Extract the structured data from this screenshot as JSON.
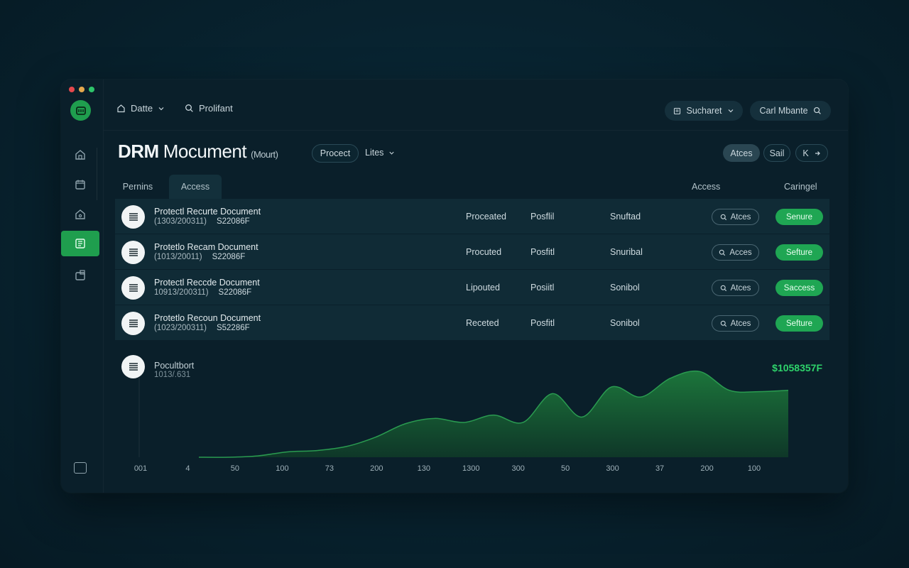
{
  "topbar": {
    "date_label": "Datte",
    "search_label": "Prolifant",
    "select_label": "Sucharet",
    "search_pill_label": "Carl Mbante"
  },
  "header": {
    "title_main": "DRM",
    "title_rest": "Mocument",
    "title_sub": "(Mourt)",
    "filter_pill": "Procect",
    "filter_dropdown": "Lites",
    "actions": [
      "Atces",
      "Sail",
      "K"
    ]
  },
  "tabs": [
    "Pernins",
    "Access"
  ],
  "column_headers": {
    "access": "Access",
    "status": "Caringel"
  },
  "rows": [
    {
      "name": "Protectl Recurte Document",
      "date": "(1303/200311)",
      "code": "S22086F",
      "col1": "Proceated",
      "col2": "Posflil",
      "col3": "Snuftad",
      "access": "Atces",
      "status": "Senure"
    },
    {
      "name": "Protetlo Recam Document",
      "date": "(1013/20011)",
      "code": "S22086F",
      "col1": "Procuted",
      "col2": "Posfitl",
      "col3": "Snuribal",
      "access": "Acces",
      "status": "Sefture"
    },
    {
      "name": "Protectl Reccde Document",
      "date": "10913/200311)",
      "code": "S22086F",
      "col1": "Lipouted",
      "col2": "Posiitl",
      "col3": "Sonibol",
      "access": "Atces",
      "status": "Saccess"
    },
    {
      "name": "Protetlo Recoun Document",
      "date": "(1023/200311)",
      "code": "S52286F",
      "col1": "Receted",
      "col2": "Posfitl",
      "col3": "Sonibol",
      "access": "Atces",
      "status": "Sefture"
    }
  ],
  "chart_panel": {
    "name": "Pocultbort",
    "date": "1013/.631",
    "value": "$1058357F"
  },
  "colors": {
    "accent": "#1fa653",
    "panel": "#102b36",
    "background": "#0a1f2a"
  },
  "chart_data": {
    "type": "area",
    "title": "",
    "xlabel": "",
    "ylabel": "",
    "x_tick_labels": [
      "001",
      "4",
      "50",
      "100",
      "73",
      "200",
      "130",
      "1300",
      "300",
      "50",
      "300",
      "37",
      "200",
      "100"
    ],
    "x": [
      0,
      0.1,
      0.2,
      0.3,
      0.4,
      0.5,
      0.6,
      0.7,
      0.8,
      0.9,
      1.0,
      1.1,
      1.2,
      1.3,
      1.4,
      1.5,
      1.6,
      1.7,
      1.8,
      1.9,
      2.0
    ],
    "values": [
      0,
      0,
      2,
      8,
      10,
      16,
      30,
      50,
      58,
      52,
      63,
      52,
      95,
      60,
      105,
      90,
      118,
      128,
      100,
      98,
      100
    ],
    "ylim": [
      0,
      140
    ],
    "grid": false
  }
}
